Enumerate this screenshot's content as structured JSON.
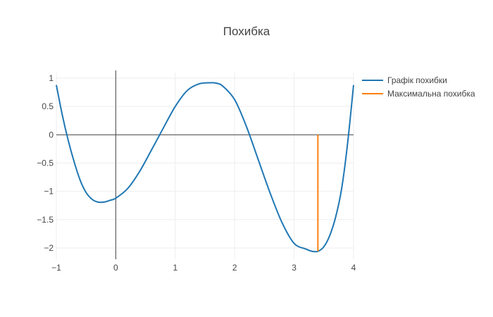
{
  "chart_data": {
    "type": "line",
    "title": "Похибка",
    "xlabel": "",
    "ylabel": "",
    "xlim": [
      -1,
      4
    ],
    "ylim": [
      -2.2,
      1.1
    ],
    "grid": true,
    "legend_placement": "top-right",
    "x_ticks": [
      -1,
      0,
      1,
      2,
      3,
      4
    ],
    "x_tick_labels": [
      "−1",
      "0",
      "1",
      "2",
      "3",
      "4"
    ],
    "y_ticks": [
      1,
      0.5,
      0,
      -0.5,
      -1,
      -1.5,
      -2
    ],
    "y_tick_labels": [
      "1",
      "0.5",
      "0",
      "−0.5",
      "−1",
      "−1.5",
      "−2"
    ],
    "series": [
      {
        "name": "Графік похибки",
        "color": "#1f77b4",
        "x": [
          -1,
          -0.9,
          -0.8,
          -0.7,
          -0.6,
          -0.5,
          -0.4,
          -0.3,
          -0.2,
          -0.1,
          0,
          0.2,
          0.4,
          0.6,
          0.8,
          1.0,
          1.2,
          1.4,
          1.6,
          1.7,
          1.8,
          2.0,
          2.2,
          2.4,
          2.6,
          2.8,
          3.0,
          3.2,
          3.3,
          3.4,
          3.5,
          3.6,
          3.7,
          3.8,
          3.9,
          4.0
        ],
        "y": [
          0.88,
          0.35,
          -0.1,
          -0.48,
          -0.8,
          -1.02,
          -1.14,
          -1.19,
          -1.19,
          -1.16,
          -1.12,
          -0.95,
          -0.65,
          -0.27,
          0.12,
          0.5,
          0.78,
          0.9,
          0.92,
          0.91,
          0.86,
          0.62,
          0.14,
          -0.45,
          -1.04,
          -1.56,
          -1.92,
          -2.02,
          -2.06,
          -2.06,
          -1.98,
          -1.78,
          -1.45,
          -0.95,
          -0.15,
          0.88
        ]
      },
      {
        "name": "Максимальна похибка",
        "color": "#ff7f0e",
        "x": [
          3.4,
          3.4
        ],
        "y": [
          0,
          -2.06
        ]
      }
    ]
  }
}
